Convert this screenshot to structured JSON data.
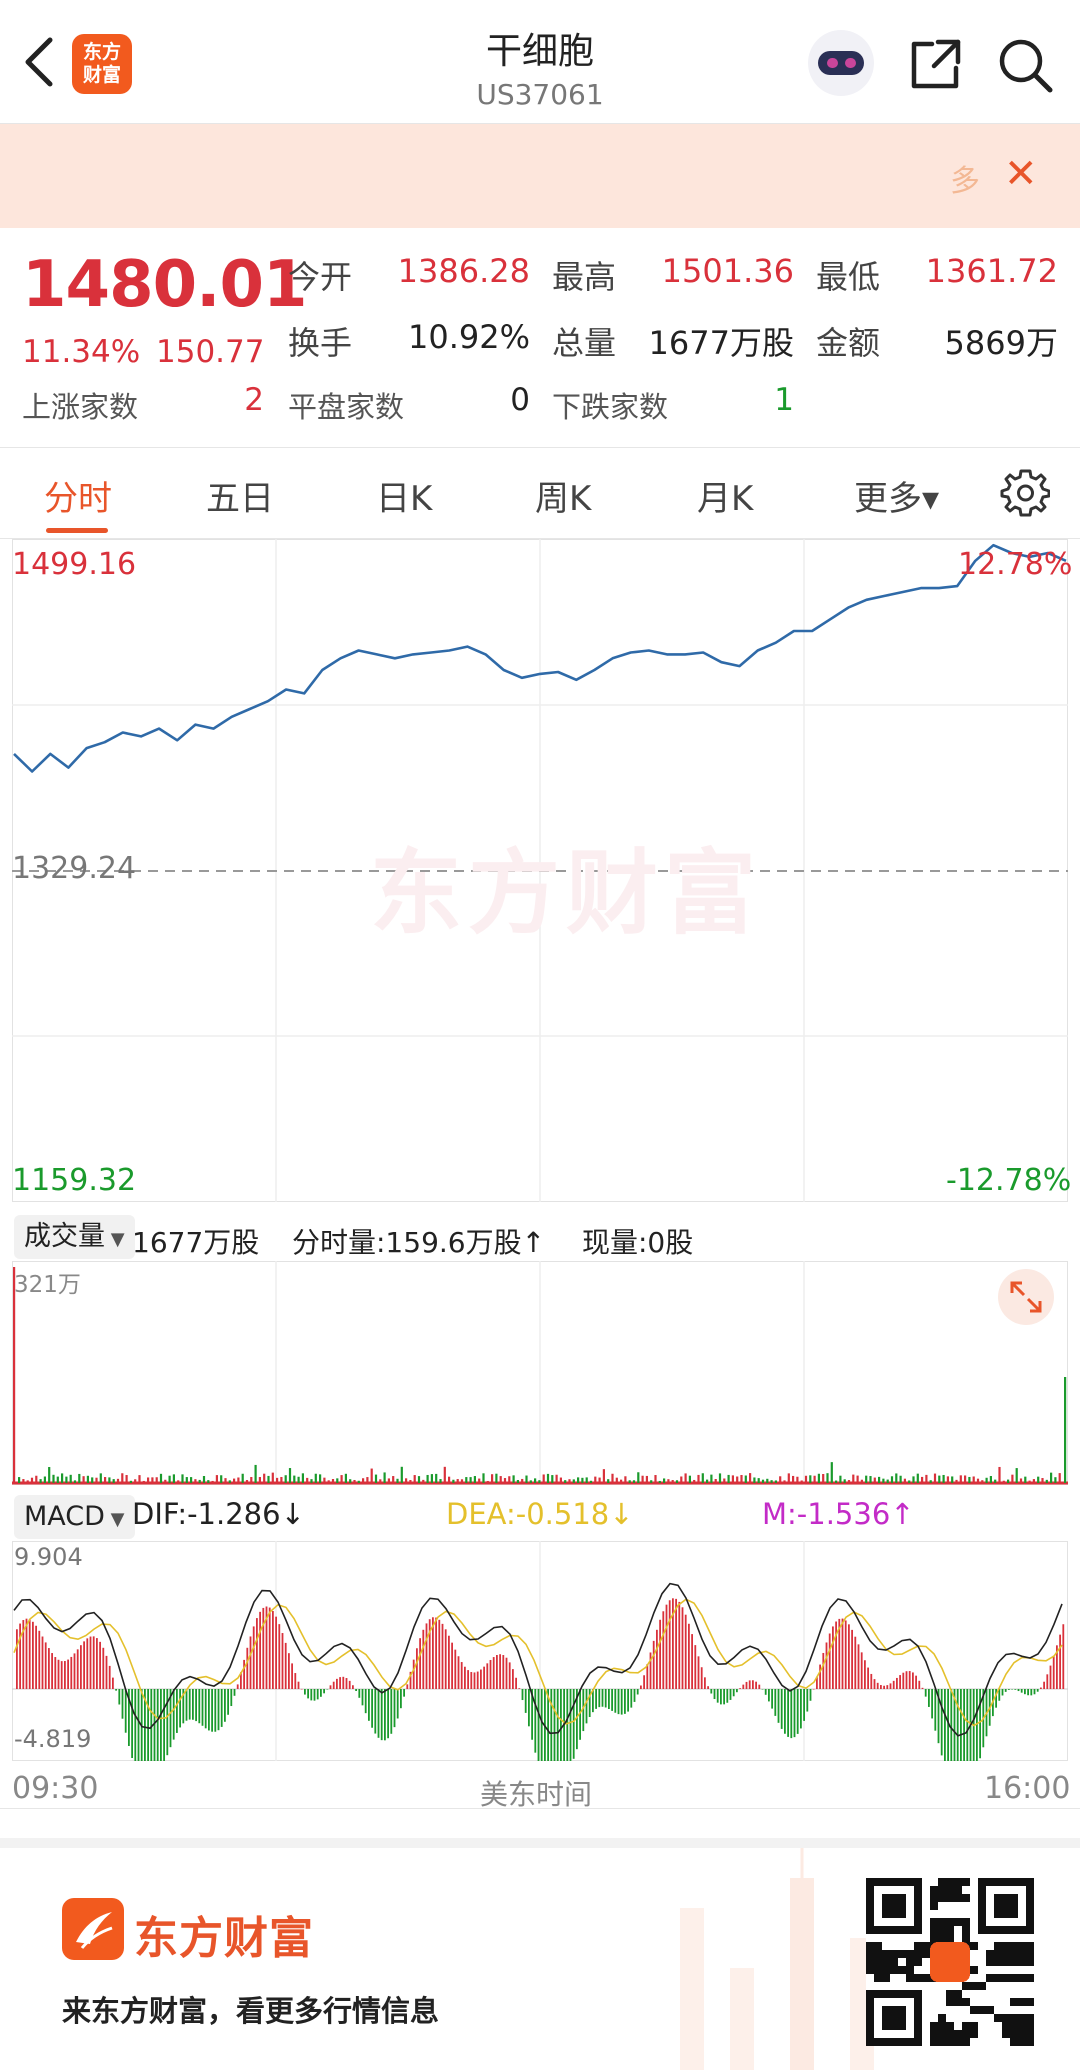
{
  "header": {
    "title": "干细胞",
    "code": "US37061",
    "logo_text": "东方\n财富"
  },
  "banner": {
    "text": "多"
  },
  "quote": {
    "price": "1480.01",
    "change_pct": "11.34%",
    "change_val": "150.77",
    "open_label": "今开",
    "open": "1386.28",
    "high_label": "最高",
    "high": "1501.36",
    "low_label": "最低",
    "low": "1361.72",
    "turnover_label": "换手",
    "turnover": "10.92%",
    "volume_label": "总量",
    "volume": "1677万股",
    "amount_label": "金额",
    "amount": "5869万",
    "up_label": "上涨家数",
    "up_count": "2",
    "flat_label": "平盘家数",
    "flat_count": "0",
    "down_label": "下跌家数",
    "down_count": "1"
  },
  "tabs": [
    "分时",
    "五日",
    "日K",
    "周K",
    "月K",
    "更多▾"
  ],
  "chart": {
    "max_price": "1499.16",
    "max_pct": "12.78%",
    "base_price": "1329.24",
    "min_price": "1159.32",
    "min_pct": "-12.78%",
    "watermark": "东方财富"
  },
  "volume": {
    "selector": "成交量",
    "total": "1677万股",
    "minute_volume": "分时量:159.6万股↑",
    "current_volume": "现量:0股",
    "scale": "321万"
  },
  "macd": {
    "selector": "MACD",
    "dif": "DIF:-1.286↓",
    "dea": "DEA:-0.518↓",
    "m": "M:-1.536↑",
    "top": "9.904",
    "bottom": "-4.819"
  },
  "time_axis": {
    "start": "09:30",
    "mid": "美东时间",
    "end": "16:00"
  },
  "footer": {
    "brand": "东方财富",
    "slogan": "来东方财富，看更多行情信息"
  },
  "chart_data": {
    "type": "line",
    "x_range": [
      "09:30",
      "16:00"
    ],
    "ylim": [
      1159.32,
      1499.16
    ],
    "base": 1329.24,
    "series": [
      {
        "values": [
          1389,
          1380,
          1389,
          1382,
          1392,
          1395,
          1400,
          1398,
          1402,
          1396,
          1404,
          1402,
          1408,
          1412,
          1416,
          1422,
          1420,
          1432,
          1438,
          1442,
          1440,
          1438,
          1440,
          1441,
          1442,
          1444,
          1440,
          1432,
          1428,
          1430,
          1431,
          1427,
          1432,
          1438,
          1441,
          1442,
          1440,
          1440,
          1441,
          1436,
          1434,
          1442,
          1446,
          1452,
          1452,
          1458,
          1464,
          1468,
          1470,
          1472,
          1474,
          1474,
          1475,
          1488,
          1496,
          1492,
          1490,
          1492,
          1488
        ]
      }
    ]
  }
}
